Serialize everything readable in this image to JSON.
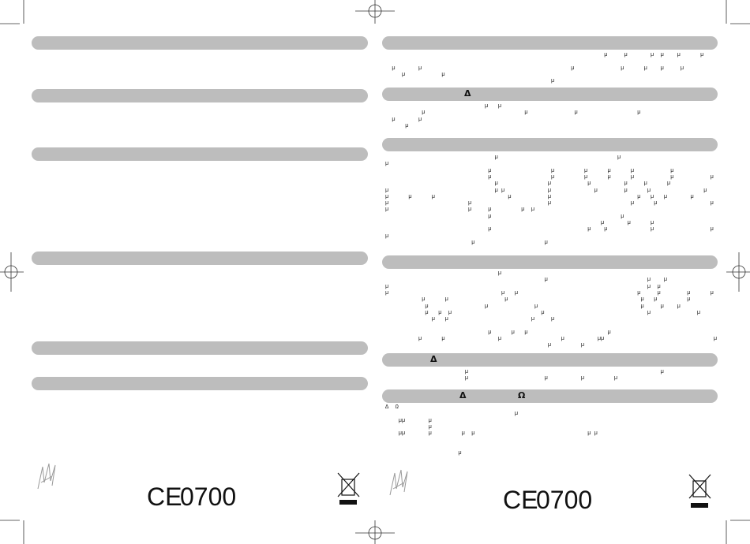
{
  "left": {
    "footer": {
      "ce": "CE",
      "number": "0700"
    }
  },
  "right": {
    "sections": [
      {
        "lines": [
          "                                                                  µ     µ       µ  µ    µ      µ",
          "",
          "  µ       µ                                             µ              µ      µ    µ     µ",
          "     µ           µ",
          "                                                  µ"
        ]
      },
      {
        "heading": [
          "Δ"
        ],
        "lines": [
          "                              µ   µ                                                           ",
          "           µ                              µ              µ                  µ",
          "  µ       µ",
          "      µ"
        ]
      },
      {
        "lines": [
          "                                 µ                                    µ",
          "µ",
          "                               µ                  µ         µ      µ      µ           µ",
          "                               µ                  µ         µ      µ      µ           µ           µ",
          "                                 µ               µ           µ          µ     µ      µ",
          "µ                                µ µ             µ             µ        µ      µ                µ",
          "µ      µ      µ                      µ           µ                          µ   µ   µ       µ",
          "µ                        µ                       µ                        µ      µ                µ",
          "µ                        µ     µ         µ  µ",
          "                               µ                                       µ",
          "                                                                 µ       µ      µ",
          "                               µ                             µ    µ             µ                 µ",
          "µ",
          "                          µ                     µ"
        ]
      },
      {
        "lines": [
          "                                  µ",
          "                                                µ                              µ    µ",
          "µ                                                                              µ  µ",
          "µ                                  µ   µ                                    µ     µ        µ      µ",
          "           µ      µ                 µ                                        µ   µ         µ",
          "            µ                 µ              µ                               µ     µ    µ",
          "            µ   µ  µ                           µ                               µ              µ",
          "              µ   µ                         µ     µ",
          "",
          "                               µ      µ   µ                        µ",
          "          µ      µ                µ                  µ          µµ                                 µ",
          "                                                 µ         µ"
        ]
      },
      {
        "heading": [
          "Δ"
        ],
        "lines": [
          "                        µ                                                          µ",
          "                        µ                       µ          µ         µ"
        ]
      },
      {
        "heading": [
          "Δ",
          "Ω"
        ],
        "lines": [
          "Δ  Ω",
          "                                       µ",
          "    µµ       µ",
          "             µ",
          "    µµ       µ         µ  µ                                  µ µ",
          "",
          "",
          "                      µ"
        ]
      }
    ],
    "footer": {
      "ce": "CE",
      "number": "0700"
    }
  }
}
